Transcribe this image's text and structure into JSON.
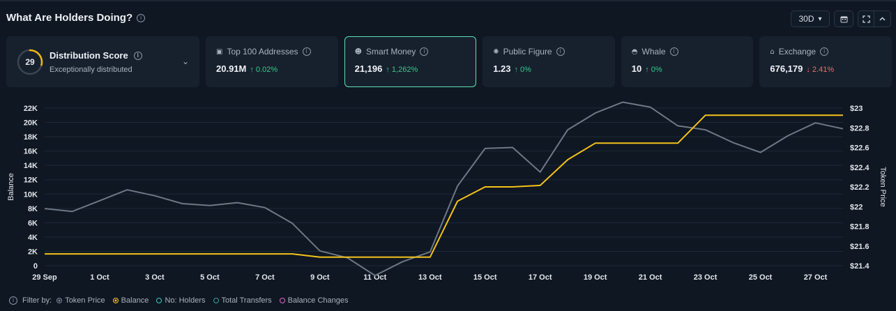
{
  "header": {
    "title": "What Are Holders Doing?",
    "info_glyph": "i",
    "period": "30D",
    "period_caret": "▾",
    "calendar_icon": "calendar-icon",
    "expand_icon": "expand-icon",
    "collapse_icon": "chevron-up-icon"
  },
  "distribution": {
    "score": "29",
    "score_value": 29,
    "label": "Distribution Score",
    "sublabel": "Exceptionally distributed",
    "ring_color": "#f5b90a",
    "caret": "⌄"
  },
  "metrics": [
    {
      "title": "Top 100 Addresses",
      "glyph": "▣",
      "value": "20.91M",
      "change": "↑ 0.02%",
      "direction": "up",
      "active": false
    },
    {
      "title": "Smart Money",
      "glyph": "☻",
      "value": "21,196",
      "change": "↑ 1,262%",
      "direction": "up",
      "active": true
    },
    {
      "title": "Public Figure",
      "glyph": "✺",
      "value": "1.23",
      "change": "↑ 0%",
      "direction": "up",
      "active": false
    },
    {
      "title": "Whale",
      "glyph": "◓",
      "value": "10",
      "change": "↑ 0%",
      "direction": "up",
      "active": false
    },
    {
      "title": "Exchange",
      "glyph": "⌂",
      "value": "676,179",
      "change": "↓ 2.41%",
      "direction": "down",
      "active": false
    }
  ],
  "chart_data": {
    "type": "line",
    "xlabel": "",
    "ylabel": "Balance",
    "y2label": "Token Price",
    "ylim": [
      0,
      22000
    ],
    "y2lim": [
      21.4,
      23.0
    ],
    "yticks": [
      "0",
      "2K",
      "4K",
      "6K",
      "8K",
      "10K",
      "12K",
      "14K",
      "16K",
      "18K",
      "20K",
      "22K"
    ],
    "y2ticks": [
      "$21.4",
      "$21.6",
      "$21.8",
      "$22",
      "$22.2",
      "$22.4",
      "$22.6",
      "$22.8",
      "$23"
    ],
    "xticks": [
      "29 Sep",
      "1 Oct",
      "3 Oct",
      "5 Oct",
      "7 Oct",
      "9 Oct",
      "11 Oct",
      "13 Oct",
      "15 Oct",
      "17 Oct",
      "19 Oct",
      "21 Oct",
      "23 Oct",
      "25 Oct",
      "27 Oct"
    ],
    "x": [
      "29 Sep",
      "30 Sep",
      "1 Oct",
      "2 Oct",
      "3 Oct",
      "4 Oct",
      "5 Oct",
      "6 Oct",
      "7 Oct",
      "8 Oct",
      "9 Oct",
      "10 Oct",
      "11 Oct",
      "12 Oct",
      "13 Oct",
      "14 Oct",
      "15 Oct",
      "16 Oct",
      "17 Oct",
      "18 Oct",
      "19 Oct",
      "20 Oct",
      "21 Oct",
      "22 Oct",
      "23 Oct",
      "24 Oct",
      "25 Oct",
      "26 Oct",
      "27 Oct",
      "28 Oct"
    ],
    "grid": true,
    "legend": "bottom-left",
    "series": [
      {
        "name": "Token Price",
        "axis": "right",
        "color": "#6e7884",
        "values": [
          21.98,
          21.95,
          22.06,
          22.17,
          22.11,
          22.03,
          22.01,
          22.04,
          21.99,
          21.83,
          21.55,
          21.48,
          21.3,
          21.44,
          21.54,
          22.21,
          22.59,
          22.6,
          22.35,
          22.78,
          22.95,
          23.06,
          23.01,
          22.82,
          22.78,
          22.65,
          22.55,
          22.72,
          22.85,
          22.79
        ]
      },
      {
        "name": "Balance",
        "axis": "left",
        "color": "#f4c21a",
        "values": [
          1650,
          1650,
          1650,
          1650,
          1650,
          1650,
          1650,
          1650,
          1650,
          1650,
          1200,
          1200,
          1200,
          1200,
          1200,
          9000,
          11000,
          11000,
          11200,
          14800,
          17100,
          17100,
          17100,
          17100,
          21000,
          21000,
          21000,
          21000,
          21000,
          21000
        ]
      }
    ]
  },
  "filters": {
    "label": "Filter by:",
    "items": [
      {
        "label": "Token Price",
        "color": "#7c8793",
        "filled": true
      },
      {
        "label": "Balance",
        "color": "#f4c21a",
        "filled": true
      },
      {
        "label": "No: Holders",
        "color": "#3cc7c2",
        "filled": false
      },
      {
        "label": "Total Transfers",
        "color": "#2fa89a",
        "filled": false
      },
      {
        "label": "Balance Changes",
        "color": "#d96ac8",
        "filled": false
      }
    ]
  }
}
